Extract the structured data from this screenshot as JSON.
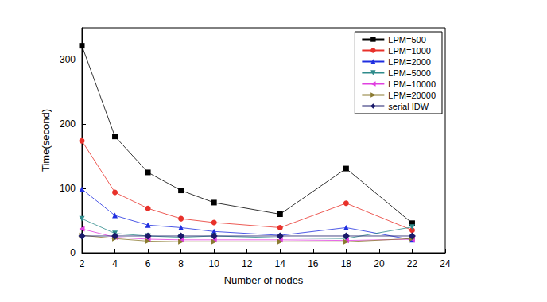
{
  "chart_data": {
    "type": "line",
    "x_label": "Number of nodes",
    "y_label": "Time(second)",
    "x": [
      2,
      4,
      6,
      8,
      10,
      14,
      18,
      22
    ],
    "xlim": [
      2,
      24
    ],
    "xticks": [
      2,
      4,
      6,
      8,
      10,
      12,
      14,
      16,
      18,
      20,
      22,
      24
    ],
    "ylim": [
      0,
      350
    ],
    "yticks": [
      0,
      100,
      200,
      300
    ],
    "grid": false,
    "legend": "upper right",
    "series": [
      {
        "name": "LPM=500",
        "color": "#000000",
        "marker": "square",
        "values": [
          322,
          181,
          125,
          97,
          78,
          60,
          131,
          46
        ]
      },
      {
        "name": "LPM=1000",
        "color": "#e8312a",
        "marker": "circle",
        "values": [
          174,
          94,
          69,
          53,
          47,
          39,
          77,
          35
        ]
      },
      {
        "name": "LPM=2000",
        "color": "#1f2ee0",
        "marker": "triangle",
        "values": [
          99,
          58,
          43,
          39,
          33,
          27,
          39,
          20
        ]
      },
      {
        "name": "LPM=5000",
        "color": "#2e8b8b",
        "marker": "triangle-down",
        "values": [
          53,
          30,
          26,
          24,
          26,
          23,
          22,
          40
        ]
      },
      {
        "name": "LPM=10000",
        "color": "#e040e0",
        "marker": "triangle-left",
        "values": [
          37,
          24,
          21,
          20,
          20,
          20,
          19,
          21
        ]
      },
      {
        "name": "LPM=20000",
        "color": "#8a7a30",
        "marker": "triangle-right",
        "values": [
          27,
          22,
          18,
          17,
          17,
          17,
          17,
          22
        ]
      },
      {
        "name": "serial IDW",
        "color": "#1a1a6a",
        "marker": "diamond",
        "values": [
          26,
          26,
          26,
          26,
          26,
          26,
          26,
          26
        ]
      }
    ]
  }
}
